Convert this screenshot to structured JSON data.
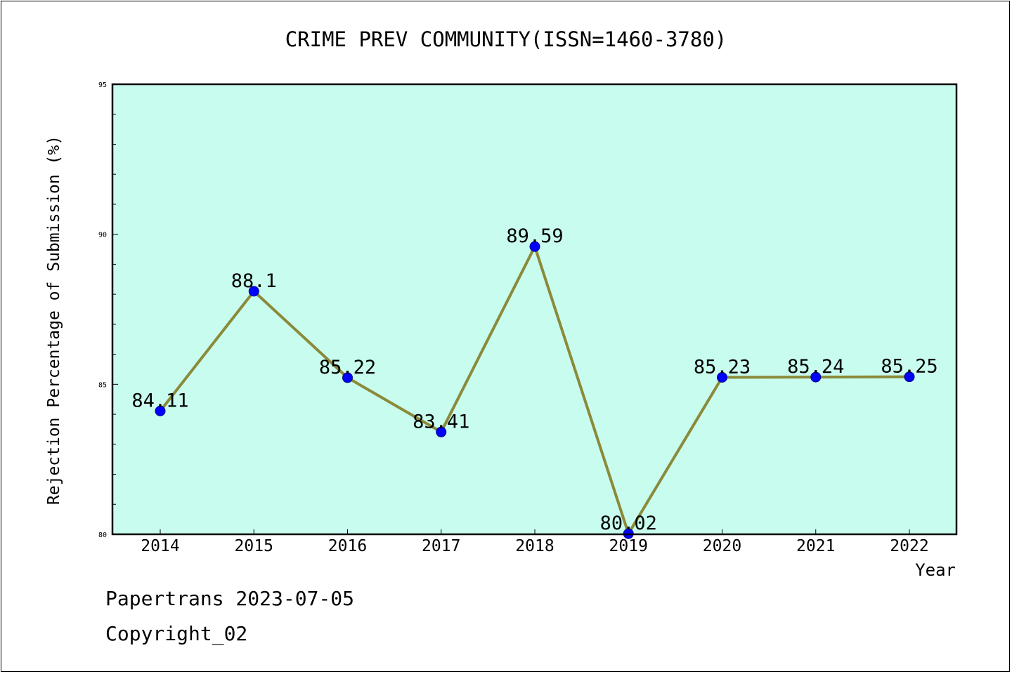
{
  "chart_data": {
    "type": "line",
    "title": "CRIME PREV COMMUNITY(ISSN=1460-3780)",
    "xlabel": "Year",
    "ylabel": "Rejection Percentage of Submission (%)",
    "categories": [
      "2014",
      "2015",
      "2016",
      "2017",
      "2018",
      "2019",
      "2020",
      "2021",
      "2022"
    ],
    "values": [
      84.11,
      88.1,
      85.22,
      83.41,
      89.59,
      80.02,
      85.23,
      85.24,
      85.25
    ],
    "data_labels": [
      "84.11",
      "88.1",
      "85.22",
      "83.41",
      "89.59",
      "80.02",
      "85.23",
      "85.24",
      "85.25"
    ],
    "ylim": [
      80,
      95
    ],
    "yticks": [
      "80",
      "85",
      "90",
      "95"
    ],
    "grid": false,
    "colors": {
      "plot_background": "#c8fcee",
      "line": "#8b8a3a",
      "marker": "#0000ff"
    }
  },
  "footer": {
    "line1": "Papertrans 2023-07-05",
    "line2": "Copyright_02"
  }
}
